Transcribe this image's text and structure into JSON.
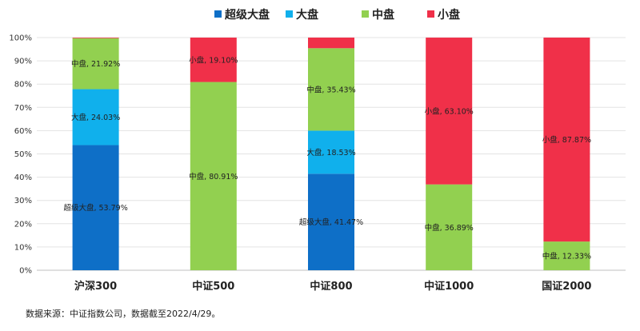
{
  "chart_data": {
    "type": "bar",
    "stacked": true,
    "categories": [
      "沪深300",
      "中证500",
      "中证800",
      "中证1000",
      "国证2000"
    ],
    "series": [
      {
        "name": "超级大盘",
        "color": "#0e6fc7",
        "values": [
          53.79,
          0,
          41.47,
          0,
          0
        ],
        "labels": [
          "超级大盘, 53.79%",
          "",
          "超级大盘, 41.47%",
          "",
          ""
        ]
      },
      {
        "name": "大盘",
        "color": "#10b0ec",
        "values": [
          24.03,
          0,
          18.53,
          0,
          0
        ],
        "labels": [
          "大盘, 24.03%",
          "",
          "大盘, 18.53%",
          "",
          ""
        ]
      },
      {
        "name": "中盘",
        "color": "#92d050",
        "values": [
          21.92,
          80.91,
          35.43,
          36.89,
          12.33
        ],
        "labels": [
          "中盘, 21.92%",
          "中盘, 80.91%",
          "中盘, 35.43%",
          "中盘, 36.89%",
          "中盘, 12.33%"
        ]
      },
      {
        "name": "小盘",
        "color": "#f03049",
        "values": [
          0.26,
          19.1,
          4.57,
          63.1,
          87.87
        ],
        "labels": [
          "",
          "小盘, 19.10%",
          "",
          "小盘, 63.10%",
          "小盘, 87.87%"
        ]
      }
    ],
    "y_ticks": [
      "0%",
      "10%",
      "20%",
      "30%",
      "40%",
      "50%",
      "60%",
      "70%",
      "80%",
      "90%",
      "100%"
    ],
    "ylim": [
      0,
      100
    ],
    "grid": "horizontal",
    "legend": "top-center"
  },
  "source_note": "数据来源：中证指数公司，数据截至2022/4/29。"
}
